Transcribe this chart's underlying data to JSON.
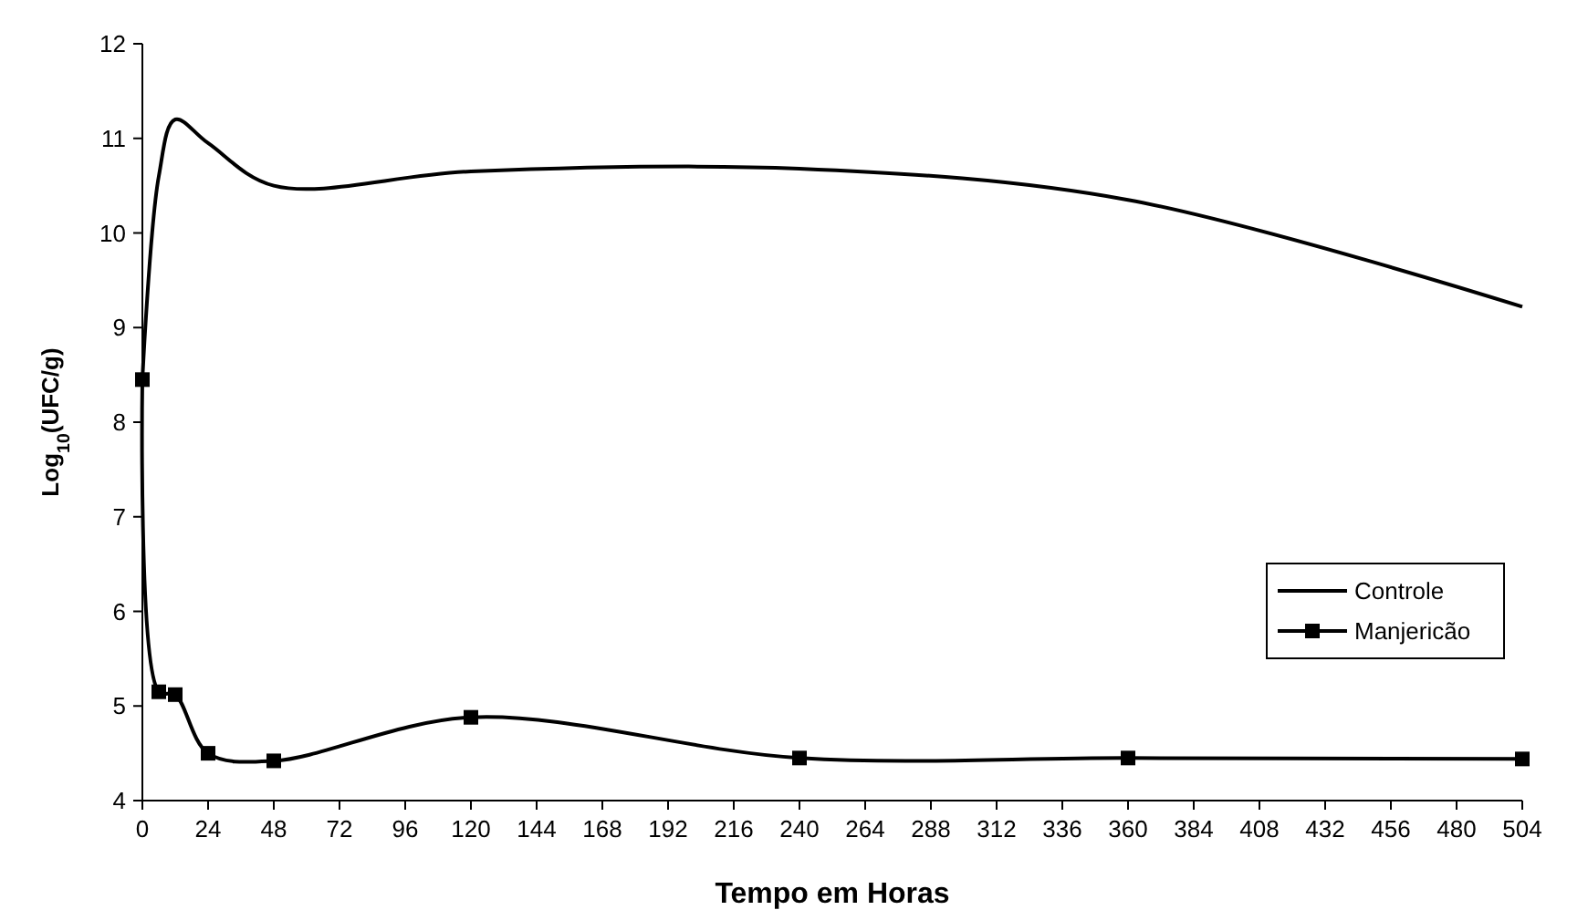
{
  "chart_data": {
    "type": "line",
    "xlabel": "Tempo em Horas",
    "ylabel": "Log$_{10}$(UFC/g)",
    "xlim": [
      0,
      504
    ],
    "xticks": [
      0,
      24,
      48,
      72,
      96,
      120,
      144,
      168,
      192,
      216,
      240,
      264,
      288,
      312,
      336,
      360,
      384,
      408,
      432,
      456,
      480,
      504
    ],
    "ylim": [
      4,
      12
    ],
    "yticks": [
      4,
      5,
      6,
      7,
      8,
      9,
      10,
      11,
      12
    ],
    "grid": false,
    "legend": "bottom right",
    "line_style": "solid",
    "series": [
      {
        "name": "Controle",
        "color": "#000000",
        "marker": "none",
        "x": [
          0,
          6,
          12,
          24,
          48,
          120,
          240,
          360,
          504
        ],
        "values": [
          8.45,
          10.6,
          11.2,
          10.95,
          10.5,
          10.65,
          10.68,
          10.35,
          9.22
        ]
      },
      {
        "name": "Manjericão",
        "color": "#000000",
        "marker": "square",
        "x": [
          0,
          6,
          12,
          24,
          48,
          120,
          240,
          360,
          504
        ],
        "values": [
          8.45,
          5.15,
          5.12,
          4.5,
          4.42,
          4.88,
          4.45,
          4.45,
          4.44
        ]
      }
    ]
  }
}
